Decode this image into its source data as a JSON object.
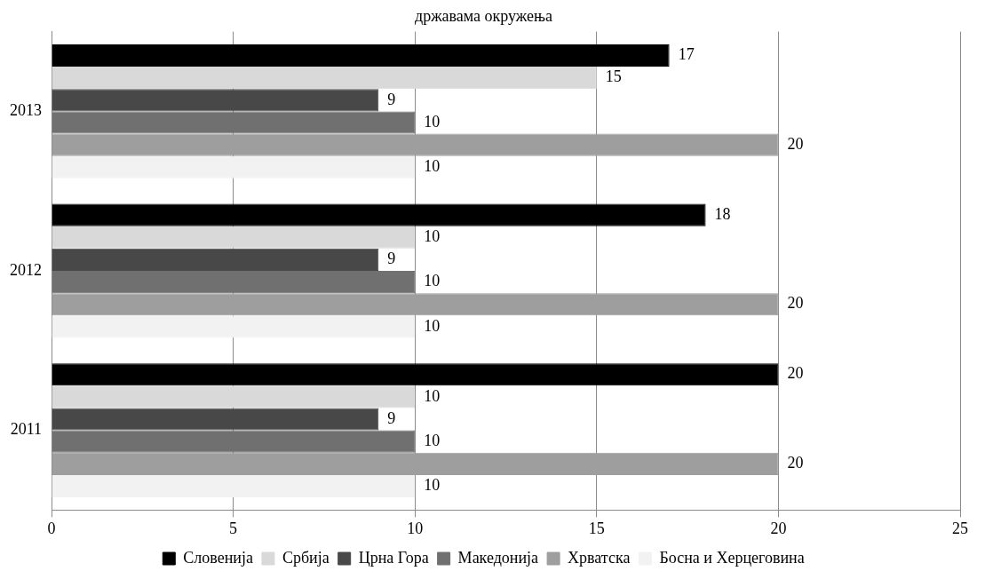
{
  "chart_data": {
    "type": "bar",
    "orientation": "horizontal",
    "title": "државама окружења",
    "categories": [
      "2013",
      "2012",
      "2011"
    ],
    "series": [
      {
        "name": "Словенија",
        "color": "#000000",
        "values": [
          17,
          18,
          20
        ]
      },
      {
        "name": "Србија",
        "color": "#d9d9d9",
        "values": [
          15,
          10,
          10
        ]
      },
      {
        "name": "Црна Гора",
        "color": "#484848",
        "values": [
          9,
          9,
          9
        ]
      },
      {
        "name": "Македонија",
        "color": "#707070",
        "values": [
          10,
          10,
          10
        ]
      },
      {
        "name": "Хрватска",
        "color": "#9e9e9e",
        "values": [
          20,
          20,
          20
        ]
      },
      {
        "name": "Босна и Херцеговина",
        "color": "#f2f2f2",
        "values": [
          10,
          10,
          10
        ]
      }
    ],
    "xlim": [
      0,
      25
    ],
    "xticks": [
      0,
      5,
      10,
      15,
      20,
      25
    ],
    "grid": "x",
    "legend": "bottom",
    "data_labels": true
  }
}
